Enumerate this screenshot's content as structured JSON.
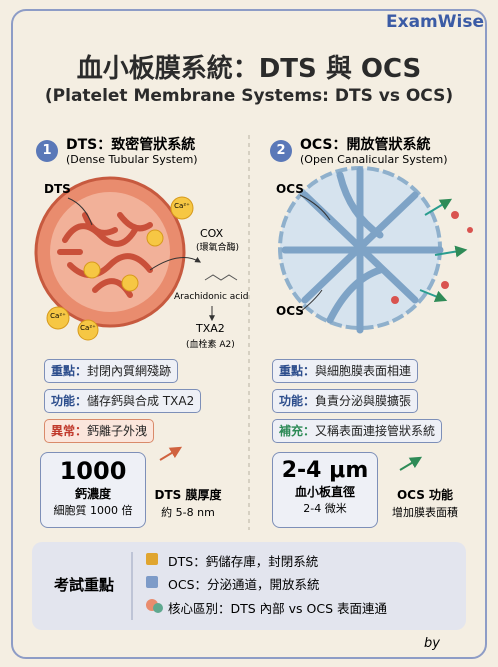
{
  "brand": "ExamWise",
  "header": {
    "title": "血小板膜系統：DTS 與 OCS",
    "subtitle": "(Platelet Membrane Systems: DTS vs OCS)"
  },
  "dts": {
    "number": "1",
    "heading": "DTS：致密管狀系統",
    "subheading": "(Dense Tubular System)",
    "diagram": {
      "label": "DTS",
      "ion": "Ca²⁺",
      "enzyme": "COX",
      "enzyme_note": "(環氧合酶)",
      "substrate": "Arachidonic acid",
      "product": "TXA2",
      "product_note": "(血栓素 A2)"
    },
    "points": [
      {
        "label": "重點：",
        "text": "封閉內質網殘跡"
      },
      {
        "label": "功能：",
        "text": "儲存鈣與合成 TXA2"
      },
      {
        "label": "異常：",
        "text": "鈣離子外洩"
      }
    ],
    "stat": {
      "value": "1000",
      "name": "鈣濃度",
      "note": "細胞質 1000 倍"
    },
    "side": {
      "name": "DTS 膜厚度",
      "note": "約 5-8 nm"
    }
  },
  "ocs": {
    "number": "2",
    "heading": "OCS：開放管狀系統",
    "subheading": "(Open Canalicular System)",
    "diagram": {
      "labels": [
        "OCS",
        "OCS"
      ]
    },
    "points": [
      {
        "label": "重點：",
        "text": "與細胞膜表面相連"
      },
      {
        "label": "功能：",
        "text": "負責分泌與膜擴張"
      },
      {
        "label": "補充：",
        "text": "又稱表面連接管狀系統"
      }
    ],
    "stat": {
      "value": "2-4 μm",
      "name": "血小板直徑",
      "note": "2-4 微米"
    },
    "side": {
      "name": "OCS 功能",
      "note": "增加膜表面積"
    }
  },
  "summary": {
    "title": "考試重點",
    "items": [
      "DTS：鈣儲存庫，封閉系統",
      "OCS：分泌通道，開放系統",
      "核心區別：DTS 內部 vs OCS 表面連通"
    ]
  },
  "signature": "by"
}
